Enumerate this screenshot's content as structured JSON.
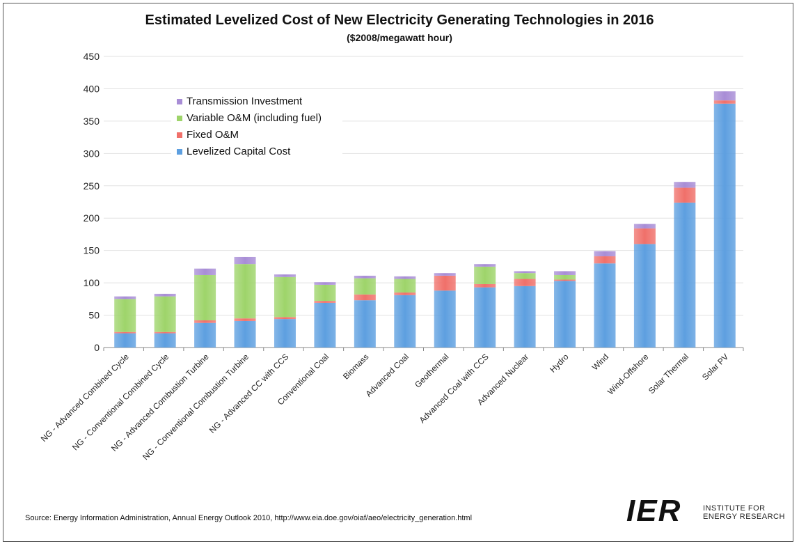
{
  "chart_data": {
    "type": "bar",
    "stacked": true,
    "title": "Estimated Levelized Cost of New Electricity Generating Technologies in 2016",
    "subtitle": "($2008/megawatt hour)",
    "xlabel": "",
    "ylabel": "",
    "ylim": [
      0,
      450
    ],
    "yticks": [
      0,
      50,
      100,
      150,
      200,
      250,
      300,
      350,
      400,
      450
    ],
    "grid": true,
    "legend_position": "top-left",
    "categories": [
      "NG - Advanced Combined Cycle",
      "NG - Conventional Combined Cycle",
      "NG - Advanced Combustion Turbine",
      "NG - Conventional Combustion Turbine",
      "NG - Advanced CC with CCS",
      "Conventional Coal",
      "Biomass",
      "Advanced Coal",
      "Geothermal",
      "Advanced Coal with CCS",
      "Advanced Nuclear",
      "Hydro",
      "Wind",
      "Wind-Offshore",
      "Solar Thermal",
      "Solar PV"
    ],
    "series": [
      {
        "name": "Levelized Capital  Cost",
        "color": "#5d9fe0",
        "values": [
          22,
          22,
          38,
          41,
          44,
          69,
          73,
          81,
          88,
          93,
          95,
          103,
          130,
          160,
          224,
          377
        ]
      },
      {
        "name": "Fixed O&M",
        "color": "#f0706a",
        "values": [
          2,
          2,
          4,
          4,
          3,
          3,
          9,
          4,
          23,
          5,
          11,
          2,
          11,
          24,
          23,
          5
        ]
      },
      {
        "name": "Variable O&M (including fuel)",
        "color": "#9ed46a",
        "values": [
          51,
          55,
          70,
          84,
          62,
          25,
          25,
          21,
          0,
          27,
          9,
          7,
          0,
          0,
          0,
          0
        ]
      },
      {
        "name": "Transmission Investment",
        "color": "#a88dd6",
        "values": [
          4,
          4,
          10,
          11,
          4,
          4,
          4,
          4,
          4,
          4,
          3,
          6,
          8,
          7,
          9,
          14
        ]
      }
    ],
    "legend_order": [
      "Transmission Investment",
      "Variable O&M (including fuel)",
      "Fixed O&M",
      "Levelized Capital  Cost"
    ]
  },
  "source": "Source: Energy Information Administration, Annual Energy Outlook 2010, http://www.eia.doe.gov/oiaf/aeo/electricity_generation.html",
  "logo": {
    "mark": "IER",
    "line1": "INSTITUTE FOR",
    "line2": "ENERGY RESEARCH"
  }
}
